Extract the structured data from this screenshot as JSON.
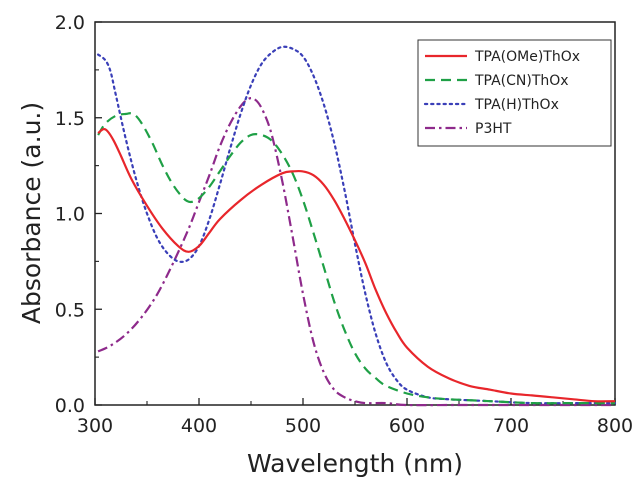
{
  "chart_data": {
    "type": "line",
    "title": "",
    "xlabel": "Wavelength (nm)",
    "ylabel": "Absorbance (a.u.)",
    "xlim": [
      300,
      800
    ],
    "ylim": [
      0.0,
      2.0
    ],
    "x_ticks": [
      300,
      400,
      500,
      600,
      700,
      800
    ],
    "x_tick_labels": [
      "300",
      "400",
      "500",
      "600",
      "700",
      "800"
    ],
    "y_ticks": [
      0.0,
      0.5,
      1.0,
      1.5,
      2.0
    ],
    "y_tick_labels": [
      "0.0",
      "0.5",
      "1.0",
      "1.5",
      "2.0"
    ],
    "grid": false,
    "legend_position": "top-right",
    "series": [
      {
        "name": "TPA(OMe)ThOx",
        "color": "#e8262b",
        "dash": "solid",
        "x": [
          303,
          308,
          312,
          318,
          325,
          335,
          350,
          365,
          380,
          390,
          400,
          410,
          420,
          440,
          460,
          480,
          490,
          500,
          510,
          520,
          530,
          540,
          550,
          560,
          570,
          580,
          590,
          600,
          620,
          640,
          660,
          680,
          700,
          720,
          740,
          760,
          780,
          800
        ],
        "y": [
          1.42,
          1.44,
          1.43,
          1.38,
          1.3,
          1.18,
          1.04,
          0.92,
          0.83,
          0.8,
          0.83,
          0.9,
          0.97,
          1.07,
          1.15,
          1.21,
          1.22,
          1.22,
          1.2,
          1.15,
          1.07,
          0.97,
          0.86,
          0.74,
          0.6,
          0.48,
          0.38,
          0.3,
          0.2,
          0.14,
          0.1,
          0.08,
          0.06,
          0.05,
          0.04,
          0.03,
          0.02,
          0.02
        ]
      },
      {
        "name": "TPA(CN)ThOx",
        "color": "#1fa046",
        "dash": "dashed",
        "x": [
          303,
          310,
          320,
          330,
          337,
          345,
          355,
          365,
          375,
          385,
          392,
          400,
          410,
          420,
          430,
          440,
          450,
          460,
          470,
          480,
          490,
          500,
          510,
          520,
          530,
          540,
          550,
          560,
          570,
          580,
          600,
          620,
          640,
          680,
          720,
          760,
          800
        ],
        "y": [
          1.41,
          1.47,
          1.51,
          1.52,
          1.52,
          1.47,
          1.37,
          1.25,
          1.15,
          1.08,
          1.06,
          1.08,
          1.14,
          1.22,
          1.3,
          1.37,
          1.41,
          1.41,
          1.38,
          1.31,
          1.21,
          1.07,
          0.9,
          0.72,
          0.54,
          0.39,
          0.27,
          0.19,
          0.14,
          0.1,
          0.06,
          0.04,
          0.03,
          0.02,
          0.01,
          0.01,
          0.01
        ]
      },
      {
        "name": "TPA(H)ThOx",
        "color": "#3a3fb8",
        "dash": "dotted",
        "x": [
          303,
          310,
          315,
          320,
          330,
          340,
          350,
          360,
          370,
          380,
          390,
          400,
          410,
          420,
          430,
          440,
          450,
          460,
          470,
          480,
          490,
          500,
          510,
          520,
          530,
          540,
          550,
          560,
          570,
          580,
          590,
          600,
          620,
          640,
          680,
          720,
          760,
          800
        ],
        "y": [
          1.83,
          1.8,
          1.74,
          1.62,
          1.38,
          1.17,
          1.0,
          0.87,
          0.79,
          0.75,
          0.76,
          0.83,
          0.97,
          1.15,
          1.34,
          1.52,
          1.67,
          1.78,
          1.84,
          1.87,
          1.86,
          1.82,
          1.72,
          1.57,
          1.37,
          1.12,
          0.84,
          0.58,
          0.37,
          0.22,
          0.13,
          0.08,
          0.04,
          0.03,
          0.02,
          0.01,
          0.01,
          0.01
        ]
      },
      {
        "name": "P3HT",
        "color": "#8e2a8b",
        "dash": "dash-dot",
        "x": [
          303,
          315,
          330,
          345,
          360,
          375,
          390,
          400,
          410,
          420,
          430,
          440,
          448,
          455,
          462,
          470,
          480,
          490,
          500,
          510,
          520,
          530,
          540,
          550,
          560,
          580,
          600,
          650,
          700,
          750,
          800
        ],
        "y": [
          0.28,
          0.31,
          0.37,
          0.46,
          0.58,
          0.74,
          0.92,
          1.06,
          1.2,
          1.35,
          1.47,
          1.56,
          1.6,
          1.59,
          1.53,
          1.41,
          1.17,
          0.88,
          0.58,
          0.33,
          0.17,
          0.08,
          0.04,
          0.02,
          0.01,
          0.01,
          0.0,
          0.0,
          0.0,
          0.0,
          0.0
        ]
      }
    ]
  }
}
